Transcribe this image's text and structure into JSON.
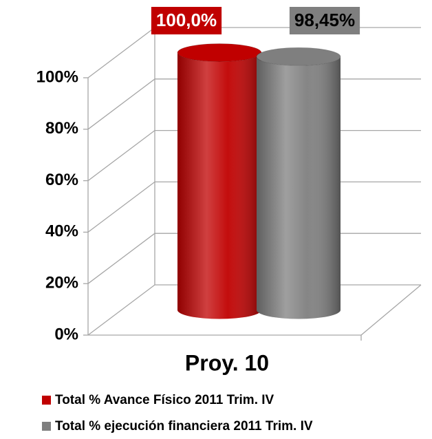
{
  "chart_data": {
    "type": "bar3d",
    "categories": [
      "Proy. 10"
    ],
    "series": [
      {
        "name": "Total % Avance Físico 2011 Trim. IV",
        "color": "#c00000",
        "values": [
          100
        ],
        "value_labels": [
          "100,0%"
        ]
      },
      {
        "name": "Total % ejecución financiera 2011 Trim. IV",
        "color": "#7f7f7f",
        "values": [
          98.45
        ],
        "value_labels": [
          "98,45%"
        ]
      }
    ],
    "ylim": [
      0,
      100
    ],
    "yticks": [
      {
        "value": 0,
        "label": "0%"
      },
      {
        "value": 20,
        "label": "20%"
      },
      {
        "value": 40,
        "label": "40%"
      },
      {
        "value": 60,
        "label": "60%"
      },
      {
        "value": 80,
        "label": "80%"
      },
      {
        "value": 100,
        "label": "100%"
      }
    ],
    "grid": true
  }
}
